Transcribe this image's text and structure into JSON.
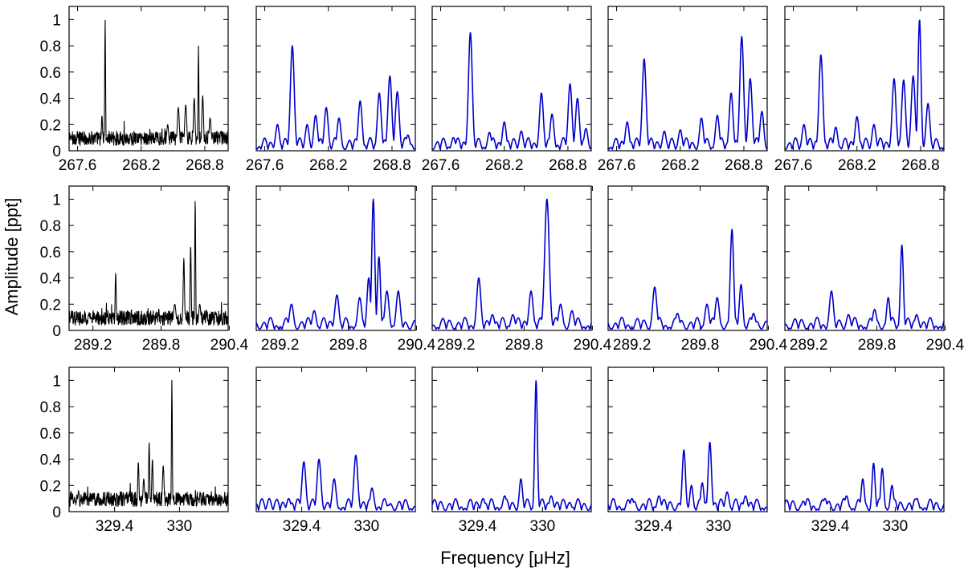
{
  "figure": {
    "ylabel": "Amplitude [ppt]",
    "xlabel": "Frequency [μHz]"
  },
  "chart_data": [
    {
      "type": "line",
      "row": 0,
      "xticks": [
        "267.6",
        "268.2",
        "268.8"
      ],
      "xtick_values": [
        267.6,
        268.2,
        268.8
      ],
      "xlim": [
        267.52,
        269.02
      ],
      "ylim": [
        0,
        1.1
      ],
      "yticks": [
        "0",
        "0.2",
        "0.4",
        "0.6",
        "0.8",
        "1"
      ],
      "yticks_values": [
        0,
        0.2,
        0.4,
        0.6,
        0.8,
        1
      ],
      "panels": [
        {
          "color": "#000000",
          "style": "noisy",
          "peaks": [
            [
              267.86,
              1.0,
              0.004
            ],
            [
              268.74,
              0.8,
              0.004
            ],
            [
              268.7,
              0.4,
              0.008
            ],
            [
              268.78,
              0.42,
              0.008
            ],
            [
              268.55,
              0.33,
              0.01
            ],
            [
              268.62,
              0.35,
              0.01
            ],
            [
              268.85,
              0.25,
              0.01
            ],
            [
              268.45,
              0.2,
              0.01
            ],
            [
              267.83,
              0.27,
              0.006
            ]
          ]
        },
        {
          "color": "#0000cc",
          "style": "smooth",
          "peaks": [
            [
              267.72,
              0.2,
              0.018
            ],
            [
              267.86,
              0.8,
              0.018
            ],
            [
              268.0,
              0.2,
              0.018
            ],
            [
              268.08,
              0.27,
              0.018
            ],
            [
              268.18,
              0.33,
              0.018
            ],
            [
              268.3,
              0.25,
              0.018
            ],
            [
              268.5,
              0.38,
              0.018
            ],
            [
              268.68,
              0.44,
              0.018
            ],
            [
              268.78,
              0.57,
              0.018
            ],
            [
              268.85,
              0.45,
              0.018
            ],
            [
              268.95,
              0.12,
              0.018
            ]
          ]
        },
        {
          "color": "#0000cc",
          "style": "smooth",
          "peaks": [
            [
              267.72,
              0.1,
              0.018
            ],
            [
              267.88,
              0.9,
              0.018
            ],
            [
              268.06,
              0.14,
              0.018
            ],
            [
              268.2,
              0.22,
              0.018
            ],
            [
              268.36,
              0.15,
              0.018
            ],
            [
              268.55,
              0.44,
              0.018
            ],
            [
              268.65,
              0.28,
              0.018
            ],
            [
              268.82,
              0.51,
              0.018
            ],
            [
              268.89,
              0.4,
              0.018
            ],
            [
              268.97,
              0.17,
              0.018
            ]
          ]
        },
        {
          "color": "#0000cc",
          "style": "smooth",
          "peaks": [
            [
              267.7,
              0.22,
              0.018
            ],
            [
              267.86,
              0.7,
              0.018
            ],
            [
              268.05,
              0.15,
              0.018
            ],
            [
              268.2,
              0.16,
              0.018
            ],
            [
              268.4,
              0.25,
              0.018
            ],
            [
              268.55,
              0.27,
              0.018
            ],
            [
              268.68,
              0.44,
              0.018
            ],
            [
              268.78,
              0.87,
              0.018
            ],
            [
              268.86,
              0.55,
              0.018
            ],
            [
              268.97,
              0.3,
              0.018
            ]
          ]
        },
        {
          "color": "#0000cc",
          "style": "smooth",
          "peaks": [
            [
              267.7,
              0.2,
              0.018
            ],
            [
              267.86,
              0.73,
              0.018
            ],
            [
              268.0,
              0.18,
              0.018
            ],
            [
              268.2,
              0.26,
              0.018
            ],
            [
              268.36,
              0.2,
              0.018
            ],
            [
              268.55,
              0.55,
              0.018
            ],
            [
              268.64,
              0.54,
              0.018
            ],
            [
              268.73,
              0.57,
              0.018
            ],
            [
              268.79,
              1.0,
              0.014
            ],
            [
              268.87,
              0.36,
              0.018
            ]
          ]
        }
      ]
    },
    {
      "type": "line",
      "row": 1,
      "xticks": [
        "289.2",
        "289.8",
        "290.4"
      ],
      "xtick_values": [
        289.2,
        289.8,
        290.4
      ],
      "xlim": [
        288.99,
        290.39
      ],
      "ylim": [
        0,
        1.1
      ],
      "yticks": [
        "0",
        "0.2",
        "0.4",
        "0.6",
        "0.8",
        "1"
      ],
      "yticks_values": [
        0,
        0.2,
        0.4,
        0.6,
        0.8,
        1
      ],
      "panels": [
        {
          "color": "#000000",
          "style": "noisy",
          "peaks": [
            [
              289.4,
              0.44,
              0.005
            ],
            [
              290.0,
              0.55,
              0.006
            ],
            [
              290.06,
              0.65,
              0.005
            ],
            [
              290.1,
              1.0,
              0.004
            ],
            [
              290.14,
              0.2,
              0.01
            ],
            [
              289.92,
              0.2,
              0.012
            ]
          ]
        },
        {
          "color": "#0000cc",
          "style": "smooth",
          "peaks": [
            [
              289.3,
              0.2,
              0.018
            ],
            [
              289.5,
              0.15,
              0.018
            ],
            [
              289.7,
              0.27,
              0.018
            ],
            [
              289.9,
              0.25,
              0.018
            ],
            [
              289.98,
              0.4,
              0.015
            ],
            [
              290.02,
              1.0,
              0.013
            ],
            [
              290.07,
              0.56,
              0.013
            ],
            [
              290.14,
              0.3,
              0.018
            ],
            [
              290.24,
              0.3,
              0.018
            ]
          ]
        },
        {
          "color": "#0000cc",
          "style": "smooth",
          "peaks": [
            [
              289.4,
              0.4,
              0.018
            ],
            [
              289.52,
              0.12,
              0.018
            ],
            [
              289.7,
              0.12,
              0.018
            ],
            [
              289.86,
              0.3,
              0.018
            ],
            [
              290.0,
              1.0,
              0.02
            ],
            [
              290.12,
              0.2,
              0.018
            ],
            [
              290.22,
              0.15,
              0.018
            ]
          ]
        },
        {
          "color": "#0000cc",
          "style": "smooth",
          "peaks": [
            [
              289.4,
              0.33,
              0.018
            ],
            [
              289.6,
              0.13,
              0.018
            ],
            [
              289.86,
              0.2,
              0.018
            ],
            [
              289.95,
              0.25,
              0.018
            ],
            [
              290.08,
              0.77,
              0.015
            ],
            [
              290.16,
              0.35,
              0.015
            ],
            [
              290.27,
              0.13,
              0.018
            ]
          ]
        },
        {
          "color": "#0000cc",
          "style": "smooth",
          "peaks": [
            [
              289.4,
              0.3,
              0.018
            ],
            [
              289.55,
              0.12,
              0.018
            ],
            [
              289.78,
              0.16,
              0.018
            ],
            [
              289.9,
              0.25,
              0.015
            ],
            [
              290.02,
              0.65,
              0.013
            ],
            [
              290.15,
              0.12,
              0.018
            ]
          ]
        }
      ]
    },
    {
      "type": "line",
      "row": 2,
      "xticks": [
        "329.4",
        "330"
      ],
      "xtick_values": [
        329.4,
        330.0
      ],
      "xlim": [
        328.98,
        330.45
      ],
      "ylim": [
        0,
        1.1
      ],
      "yticks": [
        "0",
        "0.2",
        "0.4",
        "0.6",
        "0.8",
        "1"
      ],
      "yticks_values": [
        0,
        0.2,
        0.4,
        0.6,
        0.8,
        1
      ],
      "panels": [
        {
          "color": "#000000",
          "style": "noisy",
          "peaks": [
            [
              329.93,
              1.0,
              0.004
            ],
            [
              329.72,
              0.53,
              0.005
            ],
            [
              329.62,
              0.38,
              0.006
            ],
            [
              329.75,
              0.4,
              0.006
            ],
            [
              329.85,
              0.35,
              0.008
            ],
            [
              329.67,
              0.25,
              0.008
            ]
          ]
        },
        {
          "color": "#0000cc",
          "style": "smooth",
          "peaks": [
            [
              329.1,
              0.1,
              0.018
            ],
            [
              329.28,
              0.1,
              0.018
            ],
            [
              329.42,
              0.38,
              0.018
            ],
            [
              329.56,
              0.4,
              0.018
            ],
            [
              329.7,
              0.25,
              0.018
            ],
            [
              329.9,
              0.43,
              0.018
            ],
            [
              330.05,
              0.18,
              0.018
            ],
            [
              330.2,
              0.05,
              0.018
            ]
          ]
        },
        {
          "color": "#0000cc",
          "style": "smooth",
          "peaks": [
            [
              329.2,
              0.08,
              0.018
            ],
            [
              329.45,
              0.1,
              0.018
            ],
            [
              329.65,
              0.12,
              0.018
            ],
            [
              329.8,
              0.25,
              0.015
            ],
            [
              329.94,
              1.0,
              0.012
            ],
            [
              330.08,
              0.12,
              0.018
            ],
            [
              330.25,
              0.07,
              0.018
            ]
          ]
        },
        {
          "color": "#0000cc",
          "style": "smooth",
          "peaks": [
            [
              329.2,
              0.1,
              0.018
            ],
            [
              329.45,
              0.12,
              0.018
            ],
            [
              329.68,
              0.47,
              0.015
            ],
            [
              329.75,
              0.2,
              0.015
            ],
            [
              329.85,
              0.22,
              0.015
            ],
            [
              329.92,
              0.53,
              0.015
            ],
            [
              330.08,
              0.15,
              0.018
            ],
            [
              330.25,
              0.12,
              0.018
            ]
          ]
        },
        {
          "color": "#0000cc",
          "style": "smooth",
          "peaks": [
            [
              329.15,
              0.08,
              0.018
            ],
            [
              329.35,
              0.1,
              0.018
            ],
            [
              329.55,
              0.12,
              0.018
            ],
            [
              329.7,
              0.25,
              0.015
            ],
            [
              329.8,
              0.37,
              0.014
            ],
            [
              329.88,
              0.33,
              0.014
            ],
            [
              329.97,
              0.2,
              0.015
            ],
            [
              330.2,
              0.1,
              0.018
            ]
          ]
        }
      ]
    }
  ]
}
